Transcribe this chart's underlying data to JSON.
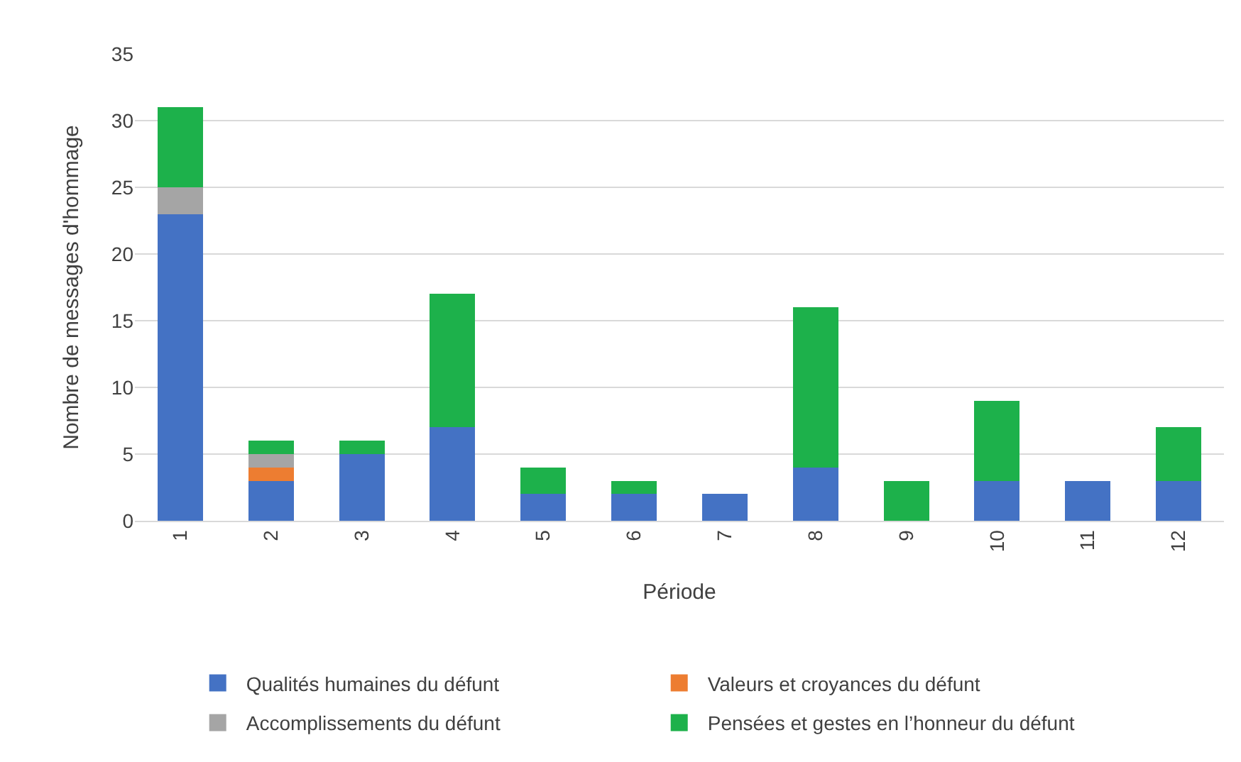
{
  "chart_data": {
    "type": "bar",
    "stacked": true,
    "xlabel": "Période",
    "ylabel": "Nombre de messages d'hommage",
    "categories": [
      "1",
      "2",
      "3",
      "4",
      "5",
      "6",
      "7",
      "8",
      "9",
      "10",
      "11",
      "12"
    ],
    "series": [
      {
        "name": "Qualités humaines du défunt",
        "color": "#4472c4",
        "values": [
          23,
          3,
          5,
          7,
          2,
          2,
          2,
          4,
          0,
          3,
          3,
          3
        ]
      },
      {
        "name": "Valeurs et croyances du défunt",
        "color": "#ed7d31",
        "values": [
          0,
          1,
          0,
          0,
          0,
          0,
          0,
          0,
          0,
          0,
          0,
          0
        ]
      },
      {
        "name": "Accomplissements du défunt",
        "color": "#a5a5a5",
        "values": [
          2,
          1,
          0,
          0,
          0,
          0,
          0,
          0,
          0,
          0,
          0,
          0
        ]
      },
      {
        "name": "Pensées et gestes en l’honneur du défunt",
        "color": "#1db14b",
        "values": [
          6,
          1,
          1,
          10,
          2,
          1,
          0,
          12,
          3,
          6,
          0,
          4
        ]
      }
    ],
    "ylim": [
      0,
      35
    ],
    "yticks": [
      0,
      5,
      10,
      15,
      20,
      25,
      30,
      35
    ],
    "grid": "y",
    "legend": "bottom"
  }
}
